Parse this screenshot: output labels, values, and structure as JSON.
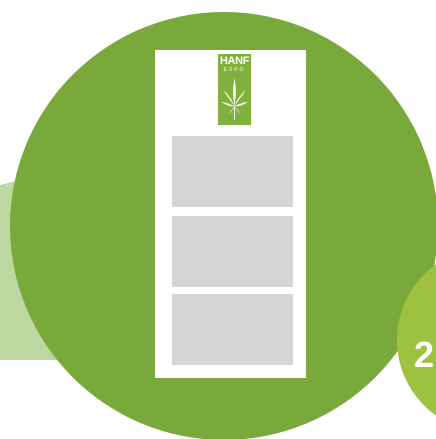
{
  "colors": {
    "main_circle": "#78a93a",
    "light_wedge": "#bcd7a0",
    "badge": "#9ec23f",
    "slot": "#d5d5d5"
  },
  "logo": {
    "word": "HANF",
    "sub": "EXPO",
    "icon": "cannabis-leaf-icon"
  },
  "badge": {
    "number": "2"
  }
}
